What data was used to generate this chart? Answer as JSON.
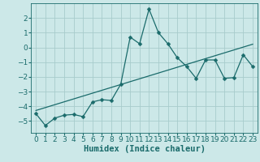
{
  "xlabel": "Humidex (Indice chaleur)",
  "bg_color": "#cce8e8",
  "grid_color": "#a8cccc",
  "line_color": "#1a6b6b",
  "x": [
    0,
    1,
    2,
    3,
    4,
    5,
    6,
    7,
    8,
    9,
    10,
    11,
    12,
    13,
    14,
    15,
    16,
    17,
    18,
    19,
    20,
    21,
    22,
    23
  ],
  "y": [
    -4.5,
    -5.3,
    -4.8,
    -4.6,
    -4.55,
    -4.7,
    -3.7,
    -3.55,
    -3.6,
    -2.5,
    0.7,
    0.25,
    2.6,
    1.0,
    0.25,
    -0.7,
    -1.3,
    -2.1,
    -0.85,
    -0.85,
    -2.1,
    -2.05,
    -0.5,
    -1.3
  ],
  "ylim": [
    -5.8,
    3.0
  ],
  "xlim": [
    -0.5,
    23.5
  ],
  "yticks": [
    -5,
    -4,
    -3,
    -2,
    -1,
    0,
    1,
    2
  ],
  "xticks": [
    0,
    1,
    2,
    3,
    4,
    5,
    6,
    7,
    8,
    9,
    10,
    11,
    12,
    13,
    14,
    15,
    16,
    17,
    18,
    19,
    20,
    21,
    22,
    23
  ],
  "markersize": 2.5,
  "linewidth": 0.9,
  "xlabel_fontsize": 7.5,
  "tick_fontsize": 6.5,
  "fig_width": 3.2,
  "fig_height": 2.0,
  "dpi": 100
}
